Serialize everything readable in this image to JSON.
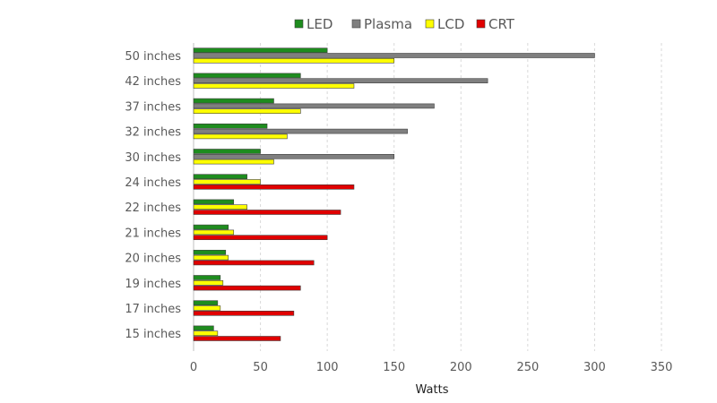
{
  "chart_data": {
    "type": "bar",
    "orientation": "horizontal",
    "title": "",
    "xlabel": "Watts",
    "ylabel": "",
    "xlim": [
      0,
      350
    ],
    "xticks": [
      0,
      50,
      100,
      150,
      200,
      250,
      300,
      350
    ],
    "grid": "vertical-dashed",
    "legend_position": "top",
    "categories": [
      "50 inches",
      "42 inches",
      "37 inches",
      "32 inches",
      "30 inches",
      "24 inches",
      "22 inches",
      "21 inches",
      "20 inches",
      "19 inches",
      "17 inches",
      "15 inches"
    ],
    "series": [
      {
        "name": "LED",
        "color": "#1e8c1e",
        "values": [
          100,
          80,
          60,
          55,
          50,
          40,
          30,
          26,
          24,
          20,
          18,
          15
        ]
      },
      {
        "name": "Plasma",
        "color": "#7f7f7f",
        "values": [
          300,
          220,
          180,
          160,
          150,
          null,
          null,
          null,
          null,
          null,
          null,
          null
        ]
      },
      {
        "name": "LCD",
        "color": "#ffff00",
        "values": [
          150,
          120,
          80,
          70,
          60,
          50,
          40,
          30,
          26,
          22,
          20,
          18
        ]
      },
      {
        "name": "CRT",
        "color": "#e00000",
        "values": [
          null,
          null,
          null,
          null,
          null,
          120,
          110,
          100,
          90,
          80,
          75,
          65
        ]
      }
    ]
  }
}
